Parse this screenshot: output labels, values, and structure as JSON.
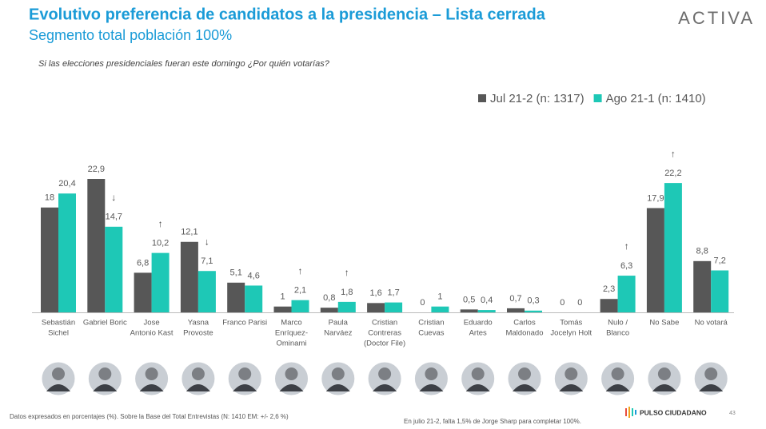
{
  "header": {
    "title": "Evolutivo preferencia de candidatos a la presidencia – Lista cerrada",
    "subtitle": "Segmento total población 100%",
    "logo": "ACTIVA"
  },
  "chart_data": {
    "type": "bar",
    "question": "Si las elecciones presidenciales fueran este domingo ¿Por quién votarías?",
    "categories": [
      [
        "Sebastián",
        "Sichel"
      ],
      [
        "Gabriel Boric"
      ],
      [
        "Jose",
        "Antonio Kast"
      ],
      [
        "Yasna",
        "Provoste"
      ],
      [
        "Franco Parisi"
      ],
      [
        "Marco",
        "Enríquez-",
        "Ominami"
      ],
      [
        "Paula",
        "Narváez"
      ],
      [
        "Cristian",
        "Contreras",
        "(Doctor File)"
      ],
      [
        "Cristian",
        "Cuevas"
      ],
      [
        "Eduardo",
        "Artes"
      ],
      [
        "Carlos",
        "Maldonado"
      ],
      [
        "Tomás",
        "Jocelyn Holt"
      ],
      [
        "Nulo /",
        "Blanco"
      ],
      [
        "No Sabe"
      ],
      [
        "No votará"
      ]
    ],
    "series": [
      {
        "name": "Jul 21-2 (n: 1317)",
        "color": "#575757",
        "values": [
          18,
          22.9,
          6.8,
          12.1,
          5.1,
          1,
          0.8,
          1.6,
          0,
          0.5,
          0.7,
          0,
          2.3,
          17.9,
          8.8
        ],
        "value_labels": [
          "18",
          "22,9",
          "6,8",
          "12,1",
          "5,1",
          "1",
          "0,8",
          "1,6",
          "0",
          "0,5",
          "0,7",
          "0",
          "2,3",
          "17,9",
          "8,8"
        ]
      },
      {
        "name": "Ago 21-1 (n: 1410)",
        "color": "#1ec8b6",
        "values": [
          20.4,
          14.7,
          10.2,
          7.1,
          4.6,
          2.1,
          1.8,
          1.7,
          1,
          0.4,
          0.3,
          0,
          6.3,
          22.2,
          7.2
        ],
        "value_labels": [
          "20,4",
          "14,7",
          "10,2",
          "7,1",
          "4,6",
          "2,1",
          "1,8",
          "1,7",
          "1",
          "0,4",
          "0,3",
          "0",
          "6,3",
          "22,2",
          "7,2"
        ]
      }
    ],
    "arrows": [
      null,
      "↓",
      "↑",
      "↓",
      null,
      "↑",
      "↑",
      null,
      null,
      null,
      null,
      null,
      "↑",
      "↑",
      null
    ],
    "legend": "top-right"
  },
  "footer": {
    "note": "Datos expresados en porcentajes (%). Sobre la Base del Total Entrevistas (N: 1410  EM: +/- 2,6 %)",
    "note2": "En julio 21-2, falta 1,5% de Jorge Sharp para completar 100%.",
    "brand": "PULSO CIUDADANO",
    "page": "43"
  }
}
